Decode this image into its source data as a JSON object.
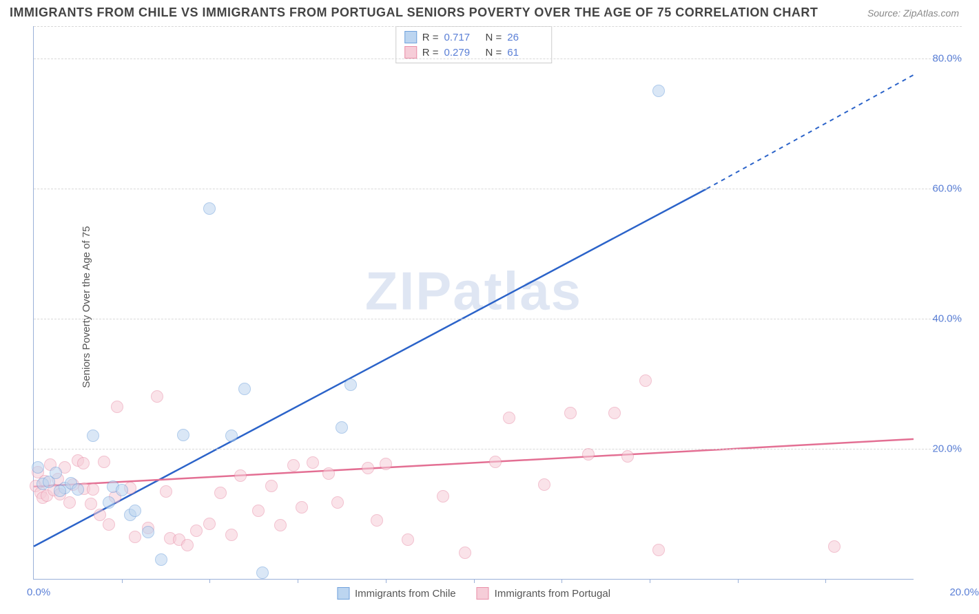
{
  "title": "IMMIGRANTS FROM CHILE VS IMMIGRANTS FROM PORTUGAL SENIORS POVERTY OVER THE AGE OF 75 CORRELATION CHART",
  "source": "Source: ZipAtlas.com",
  "ylabel": "Seniors Poverty Over the Age of 75",
  "watermark": "ZIPatlas",
  "xlim": [
    0,
    20
  ],
  "ylim": [
    0,
    85
  ],
  "x_start_label": "0.0%",
  "x_end_label": "20.0%",
  "y_ticks": [
    20,
    40,
    60,
    80
  ],
  "y_tick_labels": [
    "20.0%",
    "40.0%",
    "60.0%",
    "80.0%"
  ],
  "x_tick_positions": [
    2,
    4,
    6,
    8,
    10,
    12,
    14,
    16,
    18
  ],
  "series": [
    {
      "name": "Immigrants from Chile",
      "legend_label": "Immigrants from Chile",
      "color_fill": "#bcd5f0",
      "color_stroke": "#6fa1dc",
      "line_color": "#2b63c9",
      "r_label": "R  =",
      "r_value": "0.717",
      "n_label": "N  =",
      "n_value": "26",
      "trend": {
        "x1": 0,
        "y1": 5,
        "x2": 15.3,
        "y2": 60,
        "x2_dash": 20,
        "y2_dash": 77.5
      },
      "points": [
        [
          0.1,
          17.2
        ],
        [
          0.2,
          14.6
        ],
        [
          0.35,
          14.9
        ],
        [
          0.5,
          16.3
        ],
        [
          0.7,
          14.0
        ],
        [
          0.6,
          13.6
        ],
        [
          0.85,
          14.7
        ],
        [
          1.0,
          13.8
        ],
        [
          1.35,
          22.0
        ],
        [
          1.7,
          11.8
        ],
        [
          1.8,
          14.2
        ],
        [
          2.0,
          13.7
        ],
        [
          2.2,
          9.8
        ],
        [
          2.3,
          10.5
        ],
        [
          2.6,
          7.2
        ],
        [
          2.9,
          3.0
        ],
        [
          3.4,
          22.1
        ],
        [
          4.0,
          57.0
        ],
        [
          4.5,
          22.0
        ],
        [
          4.8,
          29.2
        ],
        [
          5.2,
          1.0
        ],
        [
          7.0,
          23.3
        ],
        [
          7.2,
          29.8
        ],
        [
          14.2,
          75.0
        ]
      ]
    },
    {
      "name": "Immigrants from Portugal",
      "legend_label": "Immigrants from Portugal",
      "color_fill": "#f6cdd8",
      "color_stroke": "#e98fa8",
      "line_color": "#e36f93",
      "r_label": "R  =",
      "r_value": "0.279",
      "n_label": "N  =",
      "n_value": "61",
      "trend": {
        "x1": 0,
        "y1": 14.2,
        "x2": 20,
        "y2": 21.5
      },
      "points": [
        [
          0.05,
          14.3
        ],
        [
          0.1,
          16.4
        ],
        [
          0.15,
          13.2
        ],
        [
          0.2,
          12.5
        ],
        [
          0.25,
          15.0
        ],
        [
          0.3,
          12.8
        ],
        [
          0.38,
          17.6
        ],
        [
          0.45,
          13.7
        ],
        [
          0.55,
          15.3
        ],
        [
          0.6,
          13.0
        ],
        [
          0.7,
          17.2
        ],
        [
          0.82,
          11.8
        ],
        [
          0.9,
          14.5
        ],
        [
          1.0,
          18.2
        ],
        [
          1.12,
          17.8
        ],
        [
          1.15,
          13.9
        ],
        [
          1.3,
          11.5
        ],
        [
          1.35,
          13.8
        ],
        [
          1.5,
          9.8
        ],
        [
          1.6,
          18.0
        ],
        [
          1.7,
          8.4
        ],
        [
          1.85,
          12.6
        ],
        [
          1.9,
          26.5
        ],
        [
          2.2,
          14.0
        ],
        [
          2.3,
          6.5
        ],
        [
          2.6,
          7.8
        ],
        [
          2.8,
          28.0
        ],
        [
          3.0,
          13.4
        ],
        [
          3.1,
          6.2
        ],
        [
          3.3,
          6.0
        ],
        [
          3.5,
          5.2
        ],
        [
          3.7,
          7.4
        ],
        [
          4.0,
          8.5
        ],
        [
          4.25,
          13.2
        ],
        [
          4.5,
          6.8
        ],
        [
          4.7,
          15.9
        ],
        [
          5.1,
          10.5
        ],
        [
          5.4,
          14.3
        ],
        [
          5.6,
          8.3
        ],
        [
          5.9,
          17.5
        ],
        [
          6.1,
          11.0
        ],
        [
          6.35,
          17.9
        ],
        [
          6.7,
          16.2
        ],
        [
          6.9,
          11.8
        ],
        [
          7.6,
          17.0
        ],
        [
          7.8,
          9.0
        ],
        [
          8.0,
          17.7
        ],
        [
          8.5,
          6.0
        ],
        [
          9.3,
          12.7
        ],
        [
          9.8,
          4.0
        ],
        [
          10.5,
          18.0
        ],
        [
          10.8,
          24.8
        ],
        [
          11.6,
          14.5
        ],
        [
          12.2,
          25.5
        ],
        [
          12.6,
          19.2
        ],
        [
          13.2,
          25.5
        ],
        [
          13.5,
          18.8
        ],
        [
          13.9,
          30.5
        ],
        [
          14.2,
          4.5
        ],
        [
          18.2,
          5.0
        ]
      ]
    }
  ]
}
